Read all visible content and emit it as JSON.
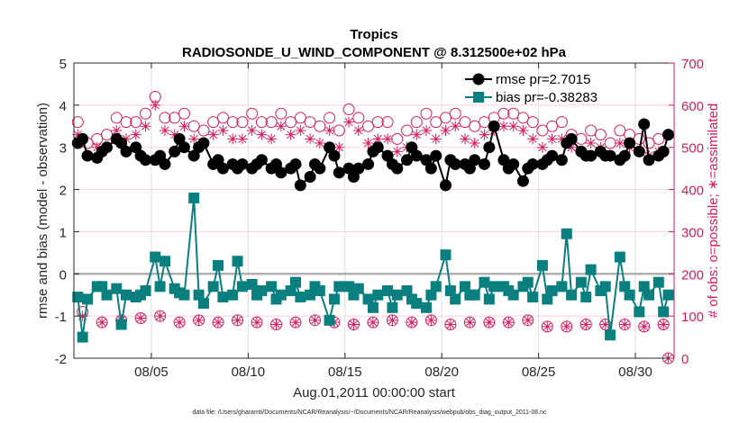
{
  "colors": {
    "rmse": "#000000",
    "bias": "#0a7f7f",
    "obs": "#d81b60",
    "grid": "#dddddd",
    "hgrid": "#f3d3df",
    "zero": "#b0b0b0"
  },
  "chart_data": {
    "type": "line",
    "title": "Tropics",
    "subtitle": "RADIOSONDE_U_WIND_COMPONENT @ 8.312500e+02 hPa",
    "xlabel": "Aug.01,2011 00:00:00 start",
    "ylabel": "rmse and bias (model - observation)",
    "ylabel_right": "# of obs: o=possible; ∗=assimilated",
    "footer": "data file: /Users/gharamti/Documents/NCAR/Reanalysis/~/Documents/NCAR/Reanalysis/webpub/obs_diag_output_2011-08.nc",
    "xlim": [
      1,
      32
    ],
    "ylim": [
      -2,
      5
    ],
    "ylim_right": [
      0,
      700
    ],
    "x_ticks": [
      5,
      10,
      15,
      20,
      25,
      30
    ],
    "x_tick_labels": [
      "08/05",
      "08/10",
      "08/15",
      "08/20",
      "08/25",
      "08/30"
    ],
    "y_ticks": [
      -2,
      -1,
      0,
      1,
      2,
      3,
      4,
      5
    ],
    "y_tick_labels": [
      "-2",
      "-1",
      "0",
      "1",
      "2",
      "3",
      "4",
      "5"
    ],
    "y_right_ticks": [
      0,
      100,
      200,
      300,
      400,
      500,
      600,
      700
    ],
    "y_right_tick_labels": [
      "0",
      "100",
      "200",
      "300",
      "400",
      "500",
      "600",
      "700"
    ],
    "grid": true,
    "legend_position": "top-right",
    "legend": [
      "rmse pr=2.7015",
      "bias pr=-0.38283"
    ],
    "x_pattern_offsets": [
      0,
      0.25,
      0.5
    ],
    "series": [
      {
        "name": "rmse pr=2.7015",
        "axis": "left",
        "values": [
          3.1,
          3.2,
          2.8,
          2.75,
          2.9,
          3.0,
          3.2,
          3.1,
          2.9,
          3.0,
          2.8,
          2.7,
          2.7,
          2.8,
          2.6,
          2.9,
          3.2,
          3.0,
          2.8,
          3.0,
          3.1,
          2.6,
          2.7,
          2.5,
          2.6,
          2.5,
          2.6,
          2.5,
          2.6,
          2.7,
          2.5,
          2.6,
          2.4,
          2.5,
          2.6,
          2.1,
          2.3,
          2.6,
          2.5,
          3.0,
          2.8,
          2.4,
          2.5,
          2.3,
          2.5,
          2.6,
          2.9,
          3.0,
          2.8,
          2.6,
          2.5,
          2.7,
          3.0,
          2.8,
          2.7,
          2.5,
          2.8,
          2.1,
          2.7,
          2.6,
          2.6,
          2.5,
          2.7,
          2.6,
          3.0,
          3.5,
          2.7,
          2.5,
          2.6,
          2.2,
          2.5,
          2.6,
          2.6,
          2.7,
          2.8,
          2.7,
          3.1,
          3.2,
          2.9,
          2.8,
          2.8,
          2.9,
          2.8,
          2.8,
          2.7,
          2.8,
          3.1,
          2.9,
          3.55,
          2.7,
          2.8,
          2.9,
          3.3
        ]
      },
      {
        "name": "bias pr=-0.38283",
        "axis": "left",
        "values": [
          -0.55,
          -1.5,
          -0.6,
          -0.3,
          -0.3,
          -0.5,
          -0.35,
          -1.2,
          -0.5,
          -0.55,
          -0.5,
          -0.4,
          0.4,
          -0.3,
          0.3,
          -0.35,
          -0.45,
          -0.5,
          1.8,
          -0.5,
          -0.7,
          -0.3,
          0.2,
          -0.55,
          -0.5,
          0.3,
          -0.3,
          -0.25,
          -0.5,
          -0.4,
          -0.3,
          -0.6,
          -0.5,
          -0.4,
          -0.2,
          -0.55,
          -0.5,
          -0.3,
          -0.4,
          -1.1,
          -0.6,
          -0.3,
          -0.3,
          -0.5,
          -0.35,
          -0.6,
          -0.8,
          -0.5,
          -0.4,
          -0.8,
          -0.5,
          -0.4,
          -0.6,
          -0.7,
          -0.8,
          -0.5,
          -0.3,
          0.45,
          -0.4,
          -0.6,
          -0.3,
          -0.5,
          -0.5,
          -0.2,
          -0.6,
          -0.3,
          -0.3,
          -0.4,
          -0.5,
          -0.3,
          -0.2,
          -0.55,
          0.2,
          -0.6,
          -0.4,
          -0.3,
          0.95,
          -0.5,
          -0.2,
          -0.55,
          0.1,
          -0.4,
          -0.3,
          -1.45,
          0.4,
          -0.3,
          -0.5,
          -0.9,
          -0.3,
          -0.5,
          -0.2,
          -0.9,
          -0.5
        ]
      },
      {
        "name": "obs possible",
        "axis": "right",
        "values": [
          560,
          110,
          510,
          520,
          85,
          530,
          570,
          90,
          560,
          560,
          95,
          580,
          620,
          100,
          570,
          570,
          85,
          580,
          550,
          90,
          540,
          560,
          85,
          570,
          560,
          90,
          560,
          580,
          85,
          560,
          560,
          80,
          580,
          560,
          85,
          570,
          560,
          90,
          550,
          570,
          85,
          540,
          590,
          80,
          570,
          550,
          85,
          560,
          560,
          90,
          520,
          540,
          85,
          560,
          580,
          90,
          560,
          570,
          80,
          580,
          560,
          85,
          550,
          560,
          85,
          570,
          580,
          85,
          580,
          570,
          90,
          560,
          540,
          75,
          550,
          560,
          75,
          530,
          520,
          80,
          540,
          530,
          80,
          510,
          540,
          80,
          530,
          520,
          75,
          510,
          520,
          80,
          0
        ]
      },
      {
        "name": "obs assimilated",
        "axis": "right",
        "values": [
          530,
          100,
          480,
          500,
          85,
          500,
          540,
          90,
          520,
          530,
          95,
          550,
          600,
          100,
          540,
          530,
          85,
          550,
          520,
          90,
          510,
          530,
          85,
          540,
          520,
          90,
          520,
          540,
          85,
          530,
          520,
          80,
          550,
          530,
          85,
          540,
          520,
          90,
          510,
          540,
          85,
          500,
          560,
          80,
          540,
          510,
          85,
          520,
          520,
          90,
          490,
          500,
          85,
          530,
          540,
          90,
          520,
          540,
          80,
          550,
          520,
          85,
          510,
          530,
          85,
          540,
          550,
          85,
          550,
          540,
          90,
          520,
          500,
          75,
          520,
          520,
          75,
          500,
          490,
          80,
          510,
          500,
          80,
          480,
          510,
          80,
          500,
          490,
          75,
          480,
          490,
          80,
          0
        ]
      }
    ]
  }
}
